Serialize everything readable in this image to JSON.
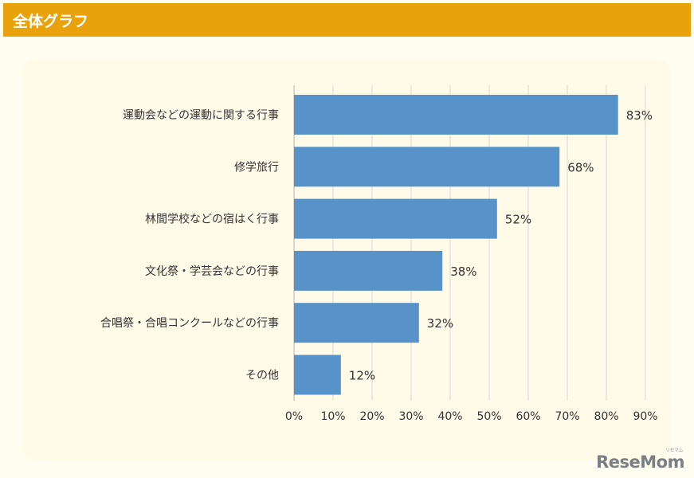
{
  "header": {
    "title": "全体グラフ"
  },
  "watermark": {
    "text": "ReseMom",
    "small": "リセマム"
  },
  "colors": {
    "bar": "#5793c8",
    "header": "#e9a20c",
    "grid": "#d9d9d9"
  },
  "chart_data": {
    "type": "bar",
    "orientation": "horizontal",
    "categories": [
      "運動会などの運動に関する行事",
      "修学旅行",
      "林間学校などの宿はく行事",
      "文化祭・学芸会などの行事",
      "合唱祭・合唱コンクールなどの行事",
      "その他"
    ],
    "values": [
      83,
      68,
      52,
      38,
      32,
      12
    ],
    "value_labels": [
      "83%",
      "68%",
      "52%",
      "38%",
      "32%",
      "12%"
    ],
    "xlim": [
      0,
      90
    ],
    "ticks": [
      0,
      10,
      20,
      30,
      40,
      50,
      60,
      70,
      80,
      90
    ],
    "tick_labels": [
      "0%",
      "10%",
      "20%",
      "30%",
      "40%",
      "50%",
      "60%",
      "70%",
      "80%",
      "90%"
    ],
    "grid": true,
    "title": "",
    "xlabel": "",
    "ylabel": ""
  }
}
